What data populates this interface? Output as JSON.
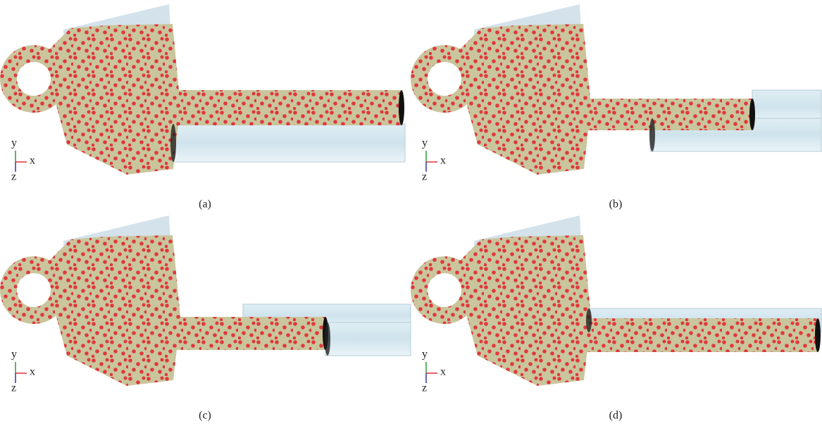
{
  "panels": [
    {
      "caption": "(a)",
      "axes": {
        "y": "y",
        "x": "x",
        "z": "z"
      }
    },
    {
      "caption": "(b)",
      "axes": {
        "y": "y",
        "x": "x",
        "z": "z"
      }
    },
    {
      "caption": "(c)",
      "axes": {
        "y": "y",
        "x": "x",
        "z": "z"
      }
    },
    {
      "caption": "(d)",
      "axes": {
        "y": "y",
        "x": "x",
        "z": "z"
      }
    }
  ]
}
